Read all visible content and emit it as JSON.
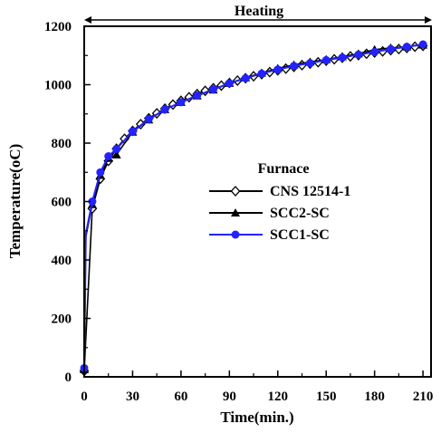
{
  "chart_data": {
    "type": "line",
    "title": "",
    "xlabel": "Time(min.)",
    "ylabel": "Temperature(oC)",
    "xlim": [
      0,
      215
    ],
    "ylim": [
      0,
      1200
    ],
    "xticks": [
      0,
      30,
      60,
      90,
      120,
      150,
      180,
      210
    ],
    "yticks": [
      0,
      200,
      400,
      600,
      800,
      1000,
      1200
    ],
    "grid": false,
    "legend": {
      "title": "Furnace",
      "position": "center-right"
    },
    "annotation": {
      "text": "Heating",
      "x_start": 0,
      "x_end": 210
    },
    "series": [
      {
        "name": "CNS 12514-1",
        "marker": "diamond-open",
        "color": "#000000",
        "x": [
          0,
          5,
          10,
          15,
          20,
          25,
          30,
          35,
          40,
          45,
          50,
          55,
          60,
          65,
          70,
          75,
          80,
          85,
          90,
          95,
          100,
          105,
          110,
          115,
          120,
          125,
          130,
          135,
          140,
          145,
          150,
          155,
          160,
          165,
          170,
          175,
          180,
          185,
          190,
          195,
          200,
          205,
          210
        ],
        "y": [
          20,
          576,
          678,
          739,
          781,
          815,
          842,
          865,
          885,
          902,
          918,
          932,
          945,
          957,
          968,
          979,
          988,
          997,
          1006,
          1014,
          1022,
          1029,
          1036,
          1043,
          1049,
          1055,
          1061,
          1067,
          1072,
          1077,
          1082,
          1087,
          1092,
          1097,
          1101,
          1106,
          1110,
          1114,
          1118,
          1122,
          1126,
          1130,
          1133
        ]
      },
      {
        "name": "SCC2-SC",
        "marker": "triangle-filled",
        "color": "#000000",
        "x": [
          0,
          1,
          5,
          10,
          15,
          20,
          30,
          40,
          50,
          60,
          70,
          80,
          90,
          100,
          110,
          120,
          130,
          140,
          150,
          160,
          170,
          180,
          190,
          200,
          210
        ],
        "y": [
          25,
          480,
          590,
          690,
          748,
          760,
          838,
          880,
          915,
          940,
          962,
          982,
          1005,
          1024,
          1040,
          1056,
          1068,
          1078,
          1086,
          1096,
          1106,
          1120,
          1126,
          1130,
          1136
        ]
      },
      {
        "name": "SCC1-SC",
        "marker": "circle-filled",
        "color": "#2323ff",
        "x": [
          0,
          1,
          5,
          10,
          15,
          20,
          30,
          40,
          50,
          60,
          70,
          80,
          90,
          100,
          110,
          120,
          130,
          140,
          150,
          160,
          170,
          180,
          190,
          200,
          210
        ],
        "y": [
          30,
          490,
          600,
          700,
          755,
          780,
          840,
          882,
          915,
          940,
          963,
          984,
          1005,
          1022,
          1038,
          1052,
          1064,
          1074,
          1084,
          1093,
          1103,
          1112,
          1122,
          1130,
          1138
        ]
      }
    ]
  }
}
